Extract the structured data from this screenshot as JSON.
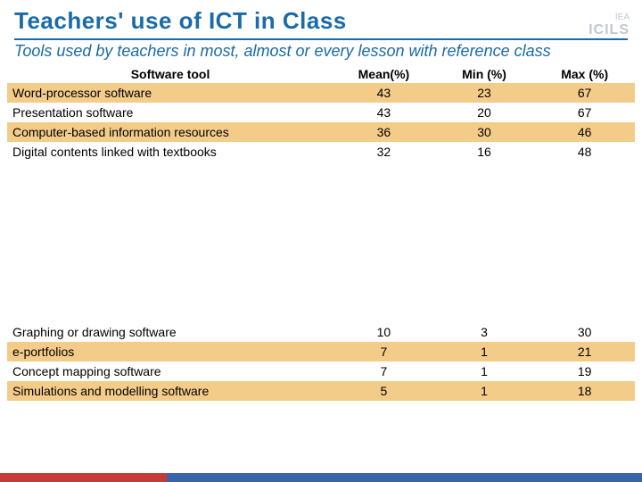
{
  "title": "Teachers' use of ICT in Class",
  "subtitle": "Tools used by teachers in most, almost or every lesson with reference class",
  "logo": {
    "small": "IEA",
    "big": "ICILS"
  },
  "table": {
    "columns": [
      "Software tool",
      "Mean(%)",
      "Min (%)",
      "Max (%)"
    ],
    "col_widths": [
      "52%",
      "16%",
      "16%",
      "16%"
    ],
    "header_fontsize": 14,
    "cell_fontsize": 14,
    "band_color": "#f4cc8a",
    "plain_color": "#ffffff",
    "rows_top": [
      {
        "tool": "Word-processor software",
        "mean": 43,
        "min": 23,
        "max": 67,
        "band": true
      },
      {
        "tool": "Presentation software",
        "mean": 43,
        "min": 20,
        "max": 67,
        "band": false
      },
      {
        "tool": "Computer-based information resources",
        "mean": 36,
        "min": 30,
        "max": 46,
        "band": true
      },
      {
        "tool": "Digital contents linked with textbooks",
        "mean": 32,
        "min": 16,
        "max": 48,
        "band": false
      }
    ],
    "rows_bottom": [
      {
        "tool": "Graphing or drawing software",
        "mean": 10,
        "min": 3,
        "max": 30,
        "band": false
      },
      {
        "tool": "e-portfolios",
        "mean": 7,
        "min": 1,
        "max": 21,
        "band": true
      },
      {
        "tool": "Concept mapping software",
        "mean": 7,
        "min": 1,
        "max": 19,
        "band": false
      },
      {
        "tool": "Simulations and modelling software",
        "mean": 5,
        "min": 1,
        "max": 18,
        "band": true
      }
    ]
  },
  "colors": {
    "accent": "#1a6ba8",
    "footer_red": "#c73a3a",
    "footer_blue": "#3a64a8"
  }
}
